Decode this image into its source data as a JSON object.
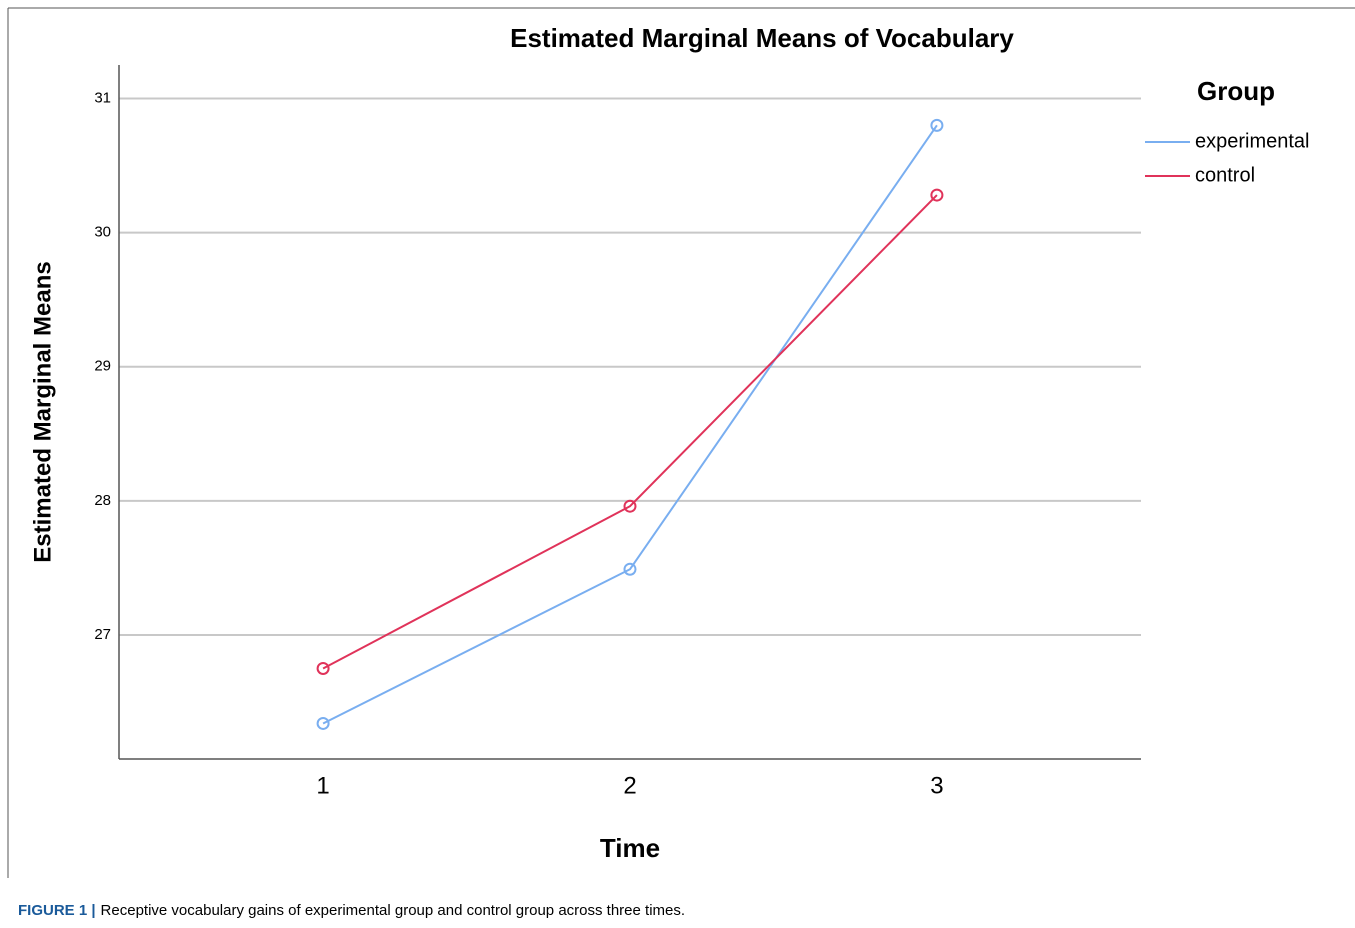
{
  "chart_data": {
    "type": "line",
    "title": "Estimated Marginal Means of Vocabulary",
    "x_label": "Time",
    "y_label": "Estimated Marginal Means",
    "x": [
      1,
      2,
      3
    ],
    "xlim": [
      0.335,
      3.665
    ],
    "xticks": [
      1,
      2,
      3
    ],
    "ylim": [
      26.075,
      31.25
    ],
    "yticks": [
      27,
      28,
      29,
      30,
      31
    ],
    "grid": true,
    "legend_title": "Group",
    "legend_position": "right",
    "series": [
      {
        "name": "experimental",
        "color": "#79aef0",
        "values": [
          26.34,
          27.49,
          30.8
        ]
      },
      {
        "name": "control",
        "color": "#e0335a",
        "values": [
          26.75,
          27.96,
          30.28
        ]
      }
    ],
    "caption_label": "FIGURE 1 |",
    "caption_text": "Receptive vocabulary gains of experimental group and control group across three times."
  }
}
